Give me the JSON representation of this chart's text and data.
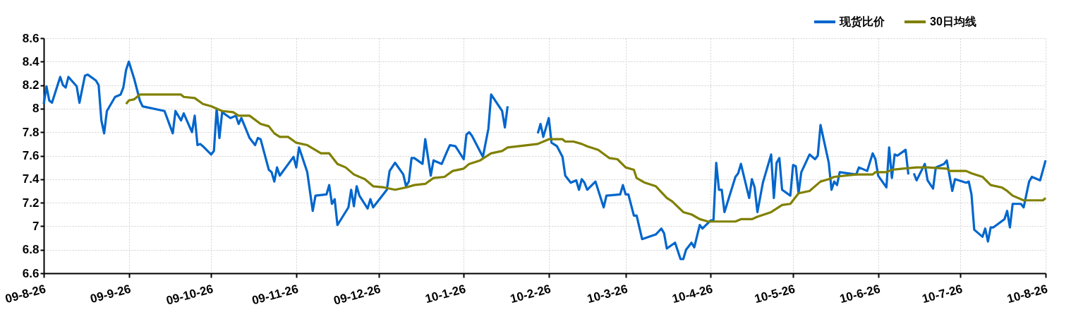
{
  "chart_data": {
    "type": "line",
    "legend": "top right",
    "grid": true,
    "line_style": "solid",
    "xlim": [
      "2009-08-26",
      "2010-08-26"
    ],
    "xticks": [
      {
        "value": "2009-08-26",
        "label": "09-8-26"
      },
      {
        "value": "2009-09-26",
        "label": "09-9-26"
      },
      {
        "value": "2009-10-26",
        "label": "09-10-26"
      },
      {
        "value": "2009-11-26",
        "label": "09-11-26"
      },
      {
        "value": "2009-12-26",
        "label": "09-12-26"
      },
      {
        "value": "2010-01-26",
        "label": "10-1-26"
      },
      {
        "value": "2010-02-26",
        "label": "10-2-26"
      },
      {
        "value": "2010-03-26",
        "label": "10-3-26"
      },
      {
        "value": "2010-04-26",
        "label": "10-4-26"
      },
      {
        "value": "2010-05-26",
        "label": "10-5-26"
      },
      {
        "value": "2010-06-26",
        "label": "10-6-26"
      },
      {
        "value": "2010-07-26",
        "label": "10-7-26"
      },
      {
        "value": "2010-08-26",
        "label": "10-8-26"
      }
    ],
    "ylim": [
      6.6,
      8.6
    ],
    "yticks": [
      6.6,
      6.8,
      7,
      7.2,
      7.4,
      7.6,
      7.8,
      8,
      8.2,
      8.4,
      8.6
    ],
    "series": [
      {
        "name": "现货比价",
        "color": "#0066cc",
        "x": [
          "2009-08-26",
          "2009-08-27",
          "2009-08-28",
          "2009-08-29",
          "2009-09-01",
          "2009-09-02",
          "2009-09-03",
          "2009-09-04",
          "2009-09-07",
          "2009-09-08",
          "2009-09-10",
          "2009-09-11",
          "2009-09-14",
          "2009-09-15",
          "2009-09-16",
          "2009-09-17",
          "2009-09-18",
          "2009-09-21",
          "2009-09-23",
          "2009-09-24",
          "2009-09-25",
          "2009-09-26",
          "2009-09-28",
          "2009-09-30",
          "2009-10-01",
          "2009-10-09",
          "2009-10-12",
          "2009-10-13",
          "2009-10-15",
          "2009-10-16",
          "2009-10-19",
          "2009-10-20",
          "2009-10-21",
          "2009-10-22",
          "2009-10-23",
          "2009-10-26",
          "2009-10-27",
          "2009-10-28",
          "2009-10-29",
          "2009-10-30",
          "2009-11-02",
          "2009-11-04",
          "2009-11-05",
          "2009-11-06",
          "2009-11-09",
          "2009-11-11",
          "2009-11-12",
          "2009-11-13",
          "2009-11-16",
          "2009-11-17",
          "2009-11-18",
          "2009-11-19",
          "2009-11-20",
          "2009-11-25",
          "2009-11-26",
          "2009-11-27",
          "2009-11-30",
          "2009-12-02",
          "2009-12-03",
          "2009-12-07",
          "2009-12-08",
          "2009-12-09",
          "2009-12-10",
          "2009-12-11",
          "2009-12-15",
          "2009-12-16",
          "2009-12-17",
          "2009-12-18",
          "2009-12-19",
          "2009-12-22",
          "2009-12-23",
          "2009-12-24",
          "2009-12-29",
          "2009-12-30",
          "2010-01-01",
          "2010-01-04",
          "2010-01-05",
          "2010-01-06",
          "2010-01-07",
          "2010-01-08",
          "2010-01-11",
          "2010-01-12",
          "2010-01-14",
          "2010-01-15",
          "2010-01-18",
          "2010-01-20",
          "2010-01-21",
          "2010-01-23",
          "2010-01-26",
          "2010-01-27",
          "2010-01-28",
          "2010-01-29",
          "2010-02-02",
          "2010-02-04",
          "2010-02-05",
          "2010-02-09",
          "2010-02-10",
          "2010-02-11",
          "2010-02-17",
          "2010-02-22",
          "2010-02-23",
          "2010-02-24",
          "2010-02-26",
          "2010-02-27",
          "2010-03-01",
          "2010-03-03",
          "2010-03-04",
          "2010-03-06",
          "2010-03-08",
          "2010-03-09",
          "2010-03-10",
          "2010-03-11",
          "2010-03-12",
          "2010-03-15",
          "2010-03-18",
          "2010-03-19",
          "2010-03-24",
          "2010-03-25",
          "2010-03-26",
          "2010-03-27",
          "2010-03-29",
          "2010-03-30",
          "2010-04-01",
          "2010-04-06",
          "2010-04-08",
          "2010-04-09",
          "2010-04-10",
          "2010-04-13",
          "2010-04-15",
          "2010-04-16",
          "2010-04-17",
          "2010-04-19",
          "2010-04-20",
          "2010-04-22",
          "2010-04-23",
          "2010-04-26",
          "2010-04-27",
          "2010-04-28",
          "2010-04-29",
          "2010-04-30",
          "2010-05-01",
          "2010-05-05",
          "2010-05-06",
          "2010-05-07",
          "2010-05-10",
          "2010-05-11",
          "2010-05-12",
          "2010-05-13",
          "2010-05-15",
          "2010-05-18",
          "2010-05-19",
          "2010-05-20",
          "2010-05-21",
          "2010-05-22",
          "2010-05-25",
          "2010-05-26",
          "2010-05-27",
          "2010-05-28",
          "2010-05-29",
          "2010-06-01",
          "2010-06-03",
          "2010-06-04",
          "2010-06-05",
          "2010-06-08",
          "2010-06-09",
          "2010-06-10",
          "2010-06-11",
          "2010-06-12",
          "2010-06-18",
          "2010-06-19",
          "2010-06-22",
          "2010-06-24",
          "2010-06-25",
          "2010-06-26",
          "2010-06-29",
          "2010-06-30",
          "2010-07-01",
          "2010-07-02",
          "2010-07-03",
          "2010-07-06",
          "2010-07-07",
          "2010-07-08",
          "2010-07-09",
          "2010-07-10",
          "2010-07-13",
          "2010-07-14",
          "2010-07-16",
          "2010-07-17",
          "2010-07-20",
          "2010-07-21",
          "2010-07-23",
          "2010-07-24",
          "2010-07-28",
          "2010-07-29",
          "2010-07-30",
          "2010-07-31",
          "2010-08-03",
          "2010-08-04",
          "2010-08-05",
          "2010-08-06",
          "2010-08-07",
          "2010-08-11",
          "2010-08-12",
          "2010-08-13",
          "2010-08-14",
          "2010-08-17",
          "2010-08-18",
          "2010-08-20",
          "2010-08-21",
          "2010-08-24",
          "2010-08-26"
        ],
        "values": [
          8.04,
          8.19,
          8.07,
          8.05,
          8.27,
          8.2,
          8.18,
          8.27,
          8.19,
          8.05,
          8.28,
          8.29,
          8.24,
          8.2,
          7.9,
          7.79,
          7.98,
          8.1,
          8.12,
          8.18,
          8.33,
          8.4,
          8.25,
          8.07,
          8.02,
          7.98,
          7.79,
          7.98,
          7.9,
          7.96,
          7.8,
          7.94,
          7.69,
          7.7,
          7.68,
          7.61,
          7.64,
          8.0,
          7.75,
          7.97,
          7.92,
          7.94,
          7.87,
          7.92,
          7.75,
          7.69,
          7.75,
          7.74,
          7.48,
          7.46,
          7.38,
          7.5,
          7.43,
          7.59,
          7.5,
          7.67,
          7.46,
          7.13,
          7.26,
          7.27,
          7.35,
          7.19,
          7.23,
          7.01,
          7.16,
          7.31,
          7.17,
          7.34,
          7.26,
          7.15,
          7.23,
          7.16,
          7.31,
          7.47,
          7.54,
          7.44,
          7.34,
          7.38,
          7.58,
          7.58,
          7.53,
          7.74,
          7.43,
          7.56,
          7.53,
          7.64,
          7.69,
          7.68,
          7.57,
          7.78,
          7.8,
          7.77,
          7.59,
          7.83,
          8.12,
          7.98,
          7.84,
          8.02,
          null,
          7.79,
          7.87,
          7.76,
          7.92,
          7.71,
          7.68,
          7.59,
          7.43,
          7.37,
          7.39,
          7.31,
          7.4,
          7.37,
          7.31,
          7.38,
          7.16,
          7.26,
          7.27,
          7.35,
          7.27,
          7.27,
          7.09,
          7.09,
          6.89,
          6.93,
          6.98,
          6.94,
          6.81,
          6.86,
          6.72,
          6.72,
          6.8,
          6.86,
          6.82,
          7.01,
          6.98,
          7.05,
          7.05,
          7.54,
          7.31,
          7.31,
          7.12,
          7.42,
          7.45,
          7.53,
          7.24,
          7.4,
          7.33,
          7.12,
          7.37,
          7.61,
          7.24,
          7.54,
          7.58,
          7.31,
          7.26,
          7.52,
          7.51,
          7.28,
          7.46,
          7.61,
          7.57,
          7.6,
          7.86,
          7.54,
          7.31,
          7.38,
          7.35,
          7.46,
          7.44,
          7.5,
          7.47,
          7.62,
          7.57,
          7.43,
          7.33,
          7.67,
          7.41,
          7.61,
          7.6,
          7.65,
          7.44,
          null,
          7.45,
          7.39,
          7.53,
          7.39,
          7.32,
          7.5,
          7.53,
          7.56,
          7.3,
          7.4,
          7.37,
          7.38,
          7.27,
          6.97,
          6.91,
          6.98,
          6.87,
          6.99,
          6.99,
          7.06,
          7.13,
          6.99,
          7.19,
          7.19,
          7.16,
          7.38,
          7.42,
          7.39,
          7.56
        ]
      },
      {
        "name": "30日均线",
        "color": "#808000",
        "x": [
          "2009-09-25",
          "2009-09-26",
          "2009-09-28",
          "2009-09-30",
          "2009-10-15",
          "2009-10-16",
          "2009-10-20",
          "2009-10-23",
          "2009-10-26",
          "2009-10-28",
          "2009-10-30",
          "2009-11-03",
          "2009-11-05",
          "2009-11-09",
          "2009-11-13",
          "2009-11-16",
          "2009-11-18",
          "2009-11-20",
          "2009-11-23",
          "2009-11-26",
          "2009-11-30",
          "2009-12-05",
          "2009-12-08",
          "2009-12-10",
          "2009-12-11",
          "2009-12-14",
          "2009-12-17",
          "2009-12-21",
          "2009-12-24",
          "2009-12-28",
          "2010-01-01",
          "2010-01-05",
          "2010-01-08",
          "2010-01-12",
          "2010-01-15",
          "2010-01-19",
          "2010-01-22",
          "2010-01-26",
          "2010-01-28",
          "2010-02-01",
          "2010-02-05",
          "2010-02-09",
          "2010-02-11",
          "2010-02-22",
          "2010-02-26",
          "2010-03-03",
          "2010-03-04",
          "2010-03-07",
          "2010-03-10",
          "2010-03-12",
          "2010-03-16",
          "2010-03-20",
          "2010-03-23",
          "2010-03-26",
          "2010-03-29",
          "2010-03-30",
          "2010-04-02",
          "2010-04-06",
          "2010-04-10",
          "2010-04-12",
          "2010-04-16",
          "2010-04-19",
          "2010-04-22",
          "2010-04-25",
          "2010-04-28",
          "2010-05-05",
          "2010-05-07",
          "2010-05-11",
          "2010-05-13",
          "2010-05-18",
          "2010-05-22",
          "2010-05-25",
          "2010-05-28",
          "2010-06-01",
          "2010-06-05",
          "2010-06-08",
          "2010-06-10",
          "2010-06-18",
          "2010-06-24",
          "2010-06-25",
          "2010-06-29",
          "2010-07-01",
          "2010-07-05",
          "2010-07-10",
          "2010-07-14",
          "2010-07-21",
          "2010-07-22",
          "2010-07-28",
          "2010-07-30",
          "2010-08-03",
          "2010-08-06",
          "2010-08-10",
          "2010-08-12",
          "2010-08-14",
          "2010-08-18",
          "2010-08-25",
          "2010-08-26"
        ],
        "values": [
          8.04,
          8.07,
          8.08,
          8.12,
          8.12,
          8.1,
          8.09,
          8.04,
          8.02,
          8.0,
          7.98,
          7.97,
          7.94,
          7.94,
          7.87,
          7.85,
          7.79,
          7.76,
          7.76,
          7.71,
          7.69,
          7.62,
          7.62,
          7.56,
          7.53,
          7.5,
          7.44,
          7.4,
          7.34,
          7.33,
          7.31,
          7.33,
          7.35,
          7.36,
          7.41,
          7.42,
          7.47,
          7.49,
          7.53,
          7.56,
          7.62,
          7.64,
          7.67,
          7.7,
          7.74,
          7.74,
          7.72,
          7.72,
          7.7,
          7.68,
          7.65,
          7.58,
          7.57,
          7.5,
          7.48,
          7.41,
          7.37,
          7.34,
          7.24,
          7.21,
          7.12,
          7.1,
          7.06,
          7.04,
          7.04,
          7.04,
          7.06,
          7.06,
          7.08,
          7.12,
          7.18,
          7.19,
          7.28,
          7.3,
          7.38,
          7.4,
          7.42,
          7.44,
          7.44,
          7.46,
          7.46,
          7.48,
          7.49,
          7.5,
          7.5,
          7.49,
          7.47,
          7.47,
          7.45,
          7.42,
          7.35,
          7.33,
          7.3,
          7.26,
          7.22,
          7.22,
          7.24
        ]
      }
    ]
  }
}
